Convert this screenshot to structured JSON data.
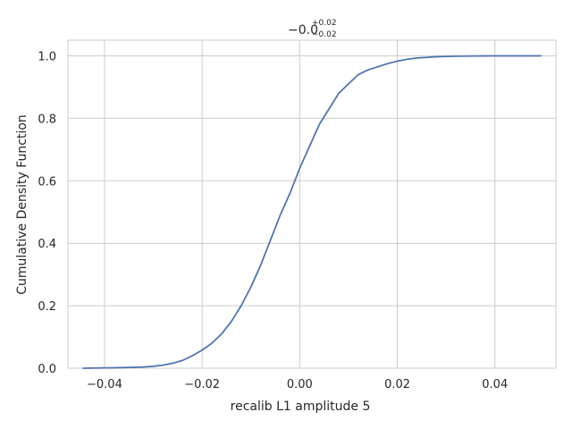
{
  "chart_data": {
    "type": "line",
    "title": {
      "main": "−0.0",
      "superscript": "+0.02",
      "subscript": "−0.02"
    },
    "xlabel": "recalib L1 amplitude 5",
    "ylabel": "Cumulative Density Function",
    "xlim": [
      -0.0475,
      0.0525
    ],
    "ylim": [
      0.0,
      1.05
    ],
    "grid": true,
    "xticks": [
      -0.04,
      -0.02,
      0.0,
      0.02,
      0.04
    ],
    "xtick_labels": [
      "−0.04",
      "−0.02",
      "0.00",
      "0.02",
      "0.04"
    ],
    "yticks": [
      0.0,
      0.2,
      0.4,
      0.6,
      0.8,
      1.0
    ],
    "ytick_labels": [
      "0.0",
      "0.2",
      "0.4",
      "0.6",
      "0.8",
      "1.0"
    ],
    "colors": {
      "line": "#4c72b0",
      "grid": "#cccccc",
      "frame": "#cccccc"
    },
    "series": [
      {
        "x": [
          -0.0445,
          -0.04,
          -0.036,
          -0.032,
          -0.03,
          -0.028,
          -0.026,
          -0.024,
          -0.022,
          -0.02,
          -0.018,
          -0.016,
          -0.014,
          -0.012,
          -0.01,
          -0.008,
          -0.006,
          -0.004,
          -0.002,
          0.0,
          0.002,
          0.004,
          0.006,
          0.008,
          0.01,
          0.012,
          0.014,
          0.016,
          0.018,
          0.02,
          0.022,
          0.024,
          0.026,
          0.028,
          0.03,
          0.032,
          0.036,
          0.04,
          0.045,
          0.0495
        ],
        "values": [
          0.0,
          0.001,
          0.002,
          0.004,
          0.006,
          0.01,
          0.016,
          0.025,
          0.04,
          0.058,
          0.08,
          0.11,
          0.15,
          0.2,
          0.26,
          0.33,
          0.41,
          0.49,
          0.56,
          0.64,
          0.71,
          0.78,
          0.83,
          0.88,
          0.91,
          0.94,
          0.955,
          0.965,
          0.975,
          0.983,
          0.989,
          0.993,
          0.995,
          0.997,
          0.998,
          0.999,
          0.9995,
          1.0,
          1.0,
          1.0
        ]
      }
    ]
  }
}
